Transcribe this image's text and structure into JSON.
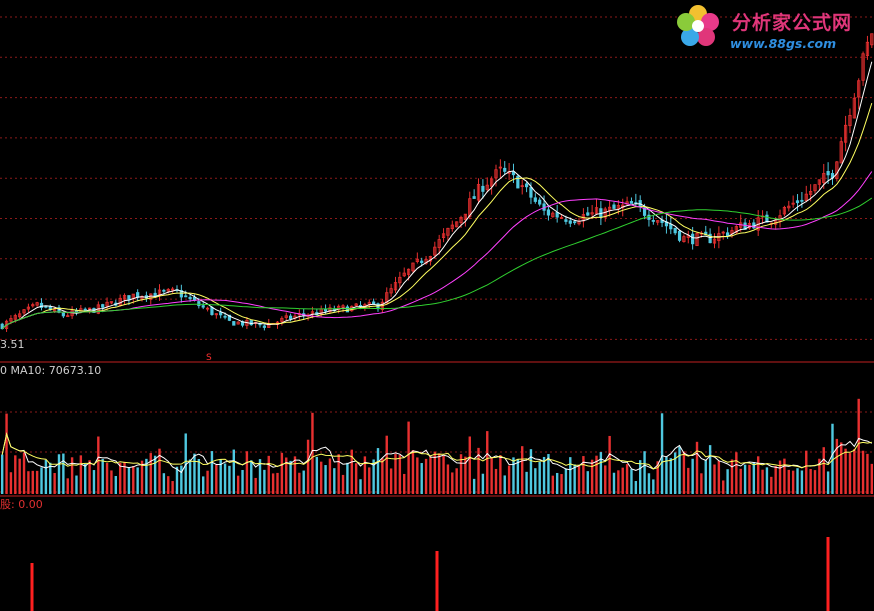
{
  "labels": {
    "price_low": "3.51",
    "volume_prefix": "0",
    "volume_ma": "MA10: 70673.10",
    "signal_line": "股: 0.00",
    "buy_marker": "S"
  },
  "logo": {
    "chinese": "分析家公式网",
    "url": "www.88gs.com"
  },
  "colors": {
    "background": "#000000",
    "up_candle": "#e83030",
    "down_candle": "#4fc8e0",
    "ma_fast": "#ffffff",
    "ma_mid": "#ffff60",
    "ma_slow": "#ff40ff",
    "ma_long": "#30d030",
    "grid": "#8a1a1a",
    "signal": "#ff2020"
  },
  "chart_data": [
    {
      "type": "candlestick",
      "panel": "price",
      "description_series": [
        "price",
        "MA5",
        "MA10",
        "MA30",
        "MA60"
      ],
      "bars": 200,
      "price_profile": [
        [
          0,
          4.0
        ],
        [
          8,
          4.6
        ],
        [
          14,
          4.3
        ],
        [
          22,
          4.5
        ],
        [
          30,
          4.9
        ],
        [
          40,
          5.0
        ],
        [
          45,
          4.6
        ],
        [
          52,
          4.1
        ],
        [
          60,
          4.0
        ],
        [
          68,
          4.3
        ],
        [
          78,
          4.5
        ],
        [
          86,
          4.6
        ],
        [
          92,
          5.5
        ],
        [
          98,
          6.2
        ],
        [
          104,
          7.1
        ],
        [
          110,
          8.2
        ],
        [
          114,
          8.6
        ],
        [
          118,
          8.3
        ],
        [
          124,
          7.4
        ],
        [
          130,
          7.2
        ],
        [
          138,
          7.4
        ],
        [
          144,
          7.6
        ],
        [
          150,
          7.2
        ],
        [
          156,
          6.6
        ],
        [
          162,
          6.6
        ],
        [
          170,
          7.0
        ],
        [
          176,
          7.2
        ],
        [
          184,
          7.9
        ],
        [
          190,
          8.6
        ],
        [
          195,
          11.0
        ],
        [
          199,
          12.8
        ]
      ],
      "ma_periods": [
        5,
        10,
        30,
        60
      ],
      "signal_markers": [
        "S"
      ],
      "ylim": [
        3.2,
        13.5
      ]
    },
    {
      "type": "bar",
      "panel": "volume",
      "ma_label": "MA10: 70673.10",
      "volume_ylim": [
        0,
        240000
      ]
    },
    {
      "type": "bar",
      "panel": "signal",
      "value_label": "0.00",
      "signal_bars": 3
    }
  ]
}
